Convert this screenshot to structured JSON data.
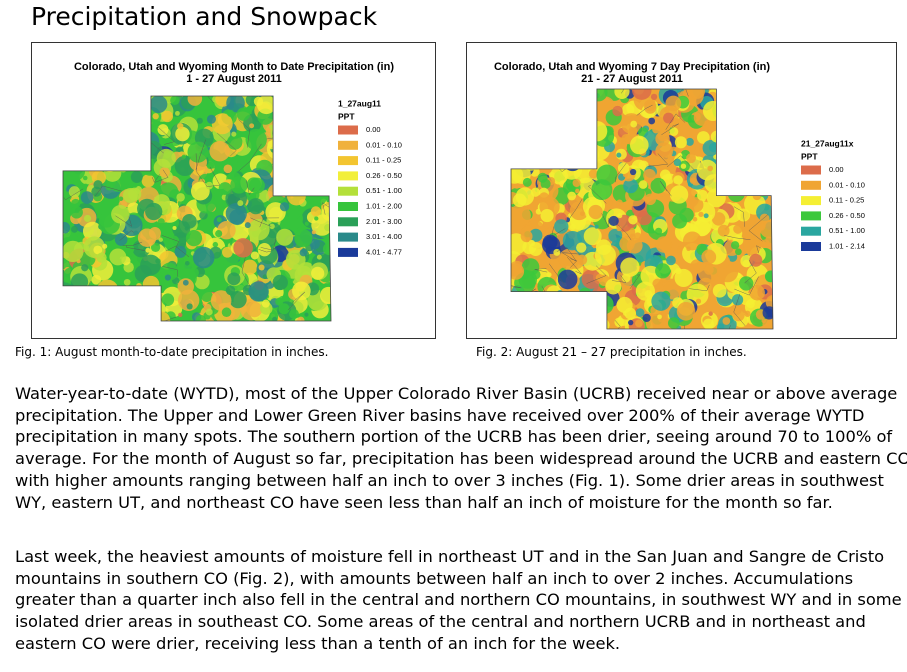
{
  "title": "Precipitation and Snowpack",
  "figures": [
    {
      "map_title": [
        "Colorado, Utah and Wyoming Month to Date Precipitation (in)",
        "1 - 27 August 2011"
      ],
      "legend_title": "1_27aug11",
      "legend_unit": "PPT",
      "legend": [
        {
          "label": "0.00",
          "color": "#dc6c4a"
        },
        {
          "label": "0.01 - 0.10",
          "color": "#f0b13c"
        },
        {
          "label": "0.11 - 0.25",
          "color": "#f3c530"
        },
        {
          "label": "0.26 - 0.50",
          "color": "#f2ef3a"
        },
        {
          "label": "0.51 - 1.00",
          "color": "#b4e03a"
        },
        {
          "label": "1.01 - 2.00",
          "color": "#36c43c"
        },
        {
          "label": "2.01 - 3.00",
          "color": "#2aa058"
        },
        {
          "label": "3.01 - 4.00",
          "color": "#2a8a8a"
        },
        {
          "label": "4.01 - 4.77",
          "color": "#1a3a9a"
        }
      ],
      "caption": "Fig. 1: August month-to-date precipitation in inches."
    },
    {
      "map_title": [
        "Colorado, Utah and Wyoming 7 Day Precipitation (in)",
        "21 - 27  August 2011"
      ],
      "legend_title": "21_27aug11x",
      "legend_unit": "PPT",
      "legend": [
        {
          "label": "0.00",
          "color": "#dc6c4a"
        },
        {
          "label": "0.01 - 0.10",
          "color": "#f0a533"
        },
        {
          "label": "0.11 - 0.25",
          "color": "#f5ef33"
        },
        {
          "label": "0.26 - 0.50",
          "color": "#3cc83c"
        },
        {
          "label": "0.51 - 1.00",
          "color": "#2aa6a0"
        },
        {
          "label": "1.01 - 2.14",
          "color": "#1a3a9a"
        }
      ],
      "caption": "Fig. 2:  August 21 – 27 precipitation in inches."
    }
  ],
  "paragraphs": [
    [
      "Water-year-to-date (WYTD), most of the Upper Colorado River Basin (UCRB) received near or above average",
      "precipitation.  The Upper and Lower Green River basins have received over 200% of their average WYTD",
      "precipitation in many spots.  The southern portion of the UCRB has been drier, seeing around 70 to 100% of",
      "average.  For the month of August so far, precipitation has been widespread around the UCRB and eastern CO,",
      "with higher amounts ranging between half an inch to over 3 inches (Fig. 1).  Some drier areas in southwest",
      "WY, eastern UT, and northeast CO have seen less than half an inch of moisture for the month so far."
    ],
    [
      "Last week, the heaviest amounts of moisture fell in northeast UT and in the San Juan and Sangre de Cristo",
      "mountains in southern CO (Fig. 2), with amounts between half an inch to over 2 inches.  Accumulations",
      "greater than a quarter inch also fell in the central and northern CO mountains, in southwest WY and in some",
      "isolated drier areas in southeast CO.  Some areas of the central and northern UCRB and in northeast and",
      "eastern CO were drier, receiving less than a tenth of an inch for the week."
    ]
  ]
}
